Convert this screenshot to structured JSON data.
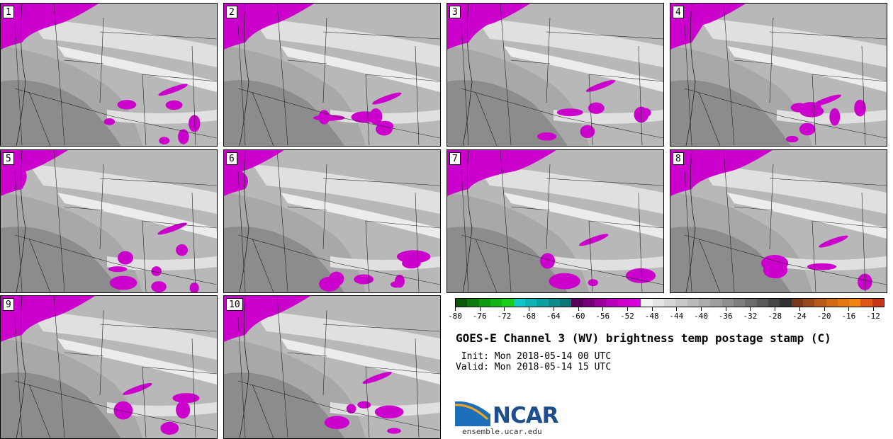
{
  "panels": [
    {
      "num": "1"
    },
    {
      "num": "2"
    },
    {
      "num": "3"
    },
    {
      "num": "4"
    },
    {
      "num": "5"
    },
    {
      "num": "6"
    },
    {
      "num": "7"
    },
    {
      "num": "8"
    },
    {
      "num": "9"
    },
    {
      "num": "10"
    }
  ],
  "colorbar": {
    "tick_labels": [
      "-80",
      "-76",
      "-72",
      "-68",
      "-64",
      "-60",
      "-56",
      "-52",
      "-48",
      "-44",
      "-40",
      "-36",
      "-32",
      "-28",
      "-24",
      "-20",
      "-16",
      "-12"
    ],
    "colors": [
      "#0a5a0a",
      "#0c7a0c",
      "#109a10",
      "#14b414",
      "#18d018",
      "#10c8c8",
      "#0eb4b4",
      "#0ca0a0",
      "#0a8c8c",
      "#087878",
      "#5a005a",
      "#7a007a",
      "#9a009a",
      "#b800b8",
      "#cc00cc",
      "#d800d8",
      "#f2f2f2",
      "#e4e4e4",
      "#d6d6d6",
      "#c8c8c8",
      "#bababa",
      "#acacac",
      "#9e9e9e",
      "#8e8e8e",
      "#7e7e7e",
      "#6c6c6c",
      "#5a5a5a",
      "#464646",
      "#323232",
      "#7a3a1a",
      "#9a4a1a",
      "#b85a1a",
      "#d06a14",
      "#e47810",
      "#f08410",
      "#e0561a",
      "#c8361a"
    ]
  },
  "title": "GOES-E Channel 3 (WV) brightness temp postage stamp (C)",
  "init_line": " Init: Mon 2018-05-14 00 UTC",
  "valid_line": "Valid: Mon 2018-05-14 15 UTC",
  "logo": {
    "name": "NCAR",
    "url": "ensemble.ucar.edu"
  },
  "map_colors": {
    "background": "#b8b8b8",
    "light": "#e0e0e0",
    "lighter": "#ececec",
    "mid": "#a8a8a8",
    "dark": "#8c8c8c",
    "cold_cloud": "#cc00cc",
    "border": "#222222"
  }
}
